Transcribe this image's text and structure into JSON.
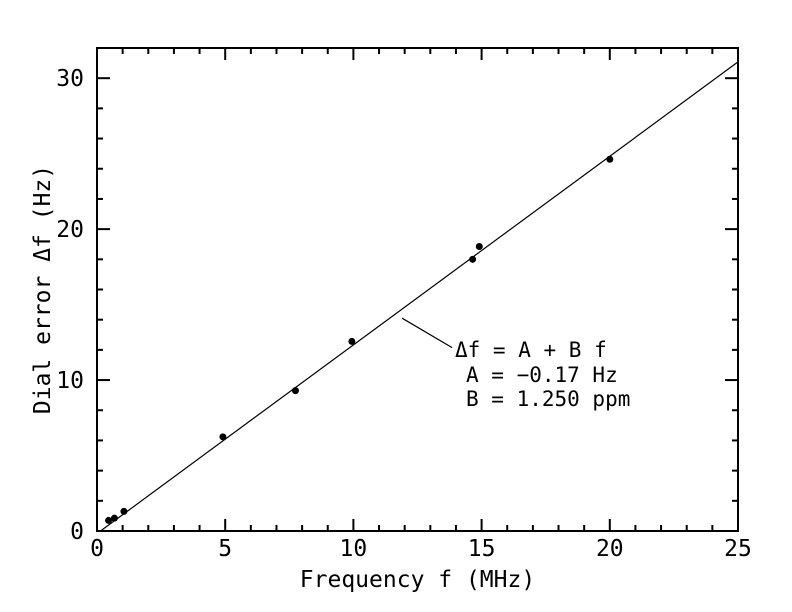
{
  "figure": {
    "background": "#ffffff",
    "foreground": "#000000"
  },
  "chart_data": {
    "type": "scatter",
    "title": "",
    "xlabel": "Frequency f (MHz)",
    "ylabel": "Dial error Δf (Hz)",
    "xlim": [
      0,
      25
    ],
    "ylim": [
      0,
      32
    ],
    "x_major_ticks": [
      0,
      5,
      10,
      15,
      20,
      25
    ],
    "x_minor_step": 1,
    "y_major_ticks": [
      0,
      10,
      20,
      30
    ],
    "y_minor_step": 2,
    "grid": false,
    "legend": null,
    "marker": {
      "shape": "filled-circle",
      "color": "#000000",
      "radius_px": 3.5
    },
    "points": [
      [
        0.45,
        0.7
      ],
      [
        0.68,
        0.85
      ],
      [
        1.05,
        1.3
      ],
      [
        4.91,
        6.24
      ],
      [
        7.74,
        9.3
      ],
      [
        9.94,
        12.56
      ],
      [
        14.65,
        18.0
      ],
      [
        14.91,
        18.85
      ],
      [
        20.0,
        24.63
      ]
    ],
    "fit_line": {
      "model": "Δf = A + B f",
      "intercept_A_hz": -0.17,
      "slope_B_ppm": 1.25,
      "x_end": 25
    },
    "annotation": {
      "lines": [
        "Δf = A + B f",
        "A = −0.17 Hz",
        "B = 1.250 ppm"
      ],
      "leader": {
        "from": [
          11.9,
          14.1
        ],
        "to": [
          13.85,
          12.15
        ]
      }
    }
  }
}
